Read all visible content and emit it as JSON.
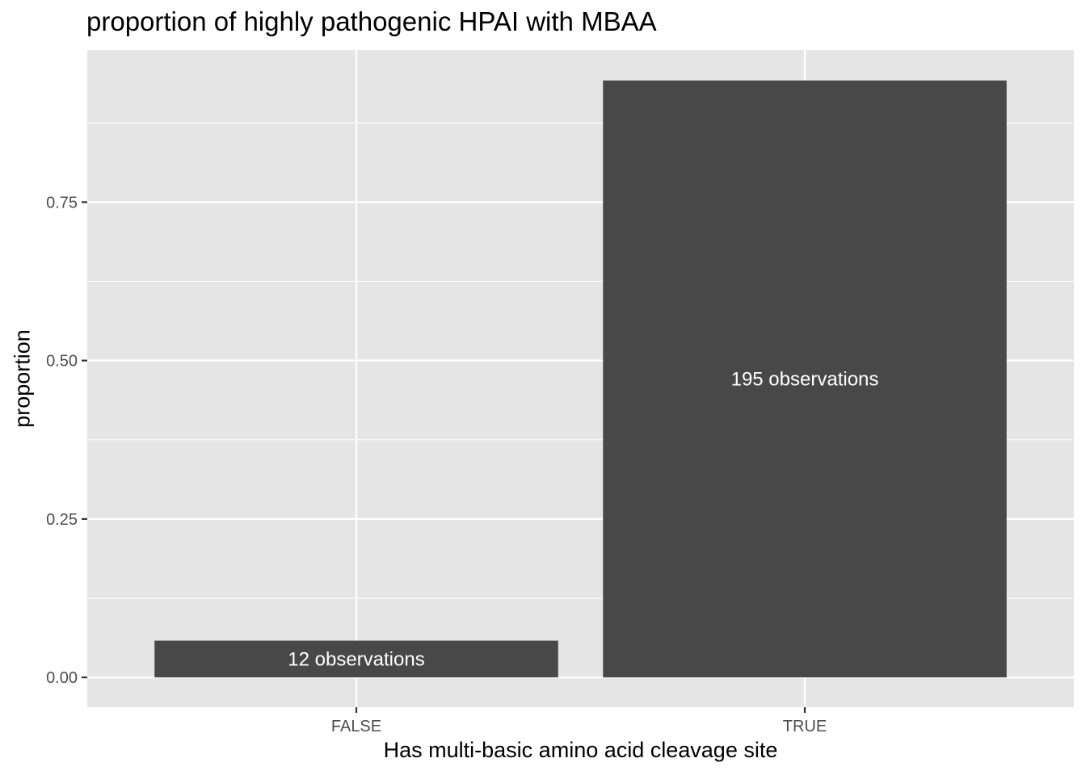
{
  "chart_data": {
    "type": "bar",
    "title": "proportion of highly pathogenic HPAI with MBAA",
    "xlabel": "Has multi-basic amino acid cleavage site",
    "ylabel": "proportion",
    "categories": [
      "FALSE",
      "TRUE"
    ],
    "values": [
      0.058,
      0.942
    ],
    "bar_labels": [
      "12 observations",
      "195 observations"
    ],
    "yticks": [
      0.0,
      0.25,
      0.5,
      0.75
    ],
    "ytick_labels": [
      "0.00",
      "0.25",
      "0.50",
      "0.75"
    ],
    "ylim": [
      -0.047,
      0.99
    ],
    "grid": true,
    "colors": {
      "panel": "#e5e5e5",
      "grid": "#ffffff",
      "bar": "#484848",
      "bar_label": "#ffffff",
      "tick_text": "#4d4d4d",
      "tick_mark": "#333333"
    }
  }
}
